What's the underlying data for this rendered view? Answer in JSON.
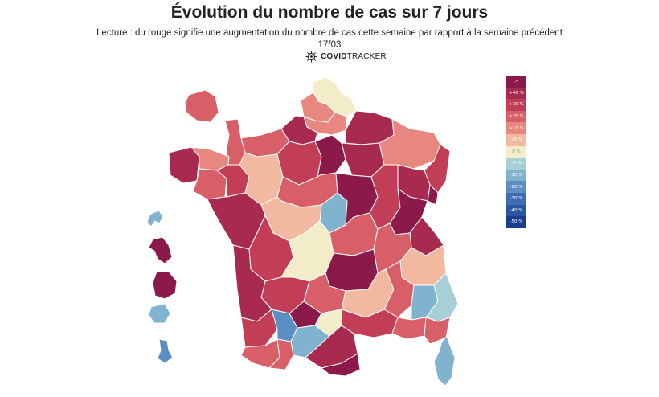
{
  "title": "Évolution du nombre de cas sur 7 jours",
  "subtitle": "Lecture : du rouge signifie une augmentation du nombre de cas cette semaine par rapport à la semaine précédent",
  "date": "17/03",
  "brand": {
    "bold": "COVID",
    "light": "TRACKER",
    "icon": "covidtracker-virus-icon"
  },
  "legend": [
    {
      "label": ">",
      "color": "#8b1a4a"
    },
    {
      "label": "+40 %",
      "color": "#a82a4f"
    },
    {
      "label": "+30 %",
      "color": "#c23e57"
    },
    {
      "label": "+20 %",
      "color": "#d85e68"
    },
    {
      "label": "+10 %",
      "color": "#e8877f"
    },
    {
      "label": "+5 %",
      "color": "#f2b8a0"
    },
    {
      "label": "0 %",
      "color": "#f3ecc8"
    },
    {
      "label": "-5 %",
      "color": "#a7cfd6"
    },
    {
      "label": "-10 %",
      "color": "#7fb3d0"
    },
    {
      "label": "-20 %",
      "color": "#5b8fc2"
    },
    {
      "label": "-30 %",
      "color": "#3d6fb0"
    },
    {
      "label": "-40 %",
      "color": "#2a55a0"
    },
    {
      "label": "-50 %",
      "color": "#1b3e8c"
    }
  ],
  "regions": [
    {
      "name": "nord",
      "color": "#f3ecc8"
    },
    {
      "name": "pas-de-calais",
      "color": "#e8877f"
    },
    {
      "name": "somme",
      "color": "#e8877f"
    },
    {
      "name": "seine-maritime",
      "color": "#a82a4f"
    },
    {
      "name": "calvados",
      "color": "#d85e68"
    },
    {
      "name": "manche",
      "color": "#d85e68"
    },
    {
      "name": "finistere",
      "color": "#a82a4f"
    },
    {
      "name": "cotes-d-armor",
      "color": "#e8877f"
    },
    {
      "name": "morbihan",
      "color": "#d85e68"
    },
    {
      "name": "ille-et-vilaine",
      "color": "#c23e57"
    },
    {
      "name": "mayenne-sarthe",
      "color": "#f2b8a0"
    },
    {
      "name": "orne-eure",
      "color": "#c23e57"
    },
    {
      "name": "paris",
      "color": "#8b1a4a"
    },
    {
      "name": "aisne-ardennes",
      "color": "#a82a4f"
    },
    {
      "name": "marne",
      "color": "#a82a4f"
    },
    {
      "name": "meuse-moselle",
      "color": "#e8877f"
    },
    {
      "name": "bas-rhin",
      "color": "#c23e57"
    },
    {
      "name": "haut-rhin",
      "color": "#8b1a4a"
    },
    {
      "name": "vosges",
      "color": "#a82a4f"
    },
    {
      "name": "loir-et-cher",
      "color": "#d85e68"
    },
    {
      "name": "cher",
      "color": "#7fb3d0"
    },
    {
      "name": "indre",
      "color": "#f2b8a0"
    },
    {
      "name": "nievre",
      "color": "#8b1a4a"
    },
    {
      "name": "cote-d-or",
      "color": "#c23e57"
    },
    {
      "name": "doubs-jura",
      "color": "#8b1a4a"
    },
    {
      "name": "haute-savoie",
      "color": "#a82a4f"
    },
    {
      "name": "vendee",
      "color": "#a82a4f"
    },
    {
      "name": "charente",
      "color": "#c23e57"
    },
    {
      "name": "creuse-correze",
      "color": "#f3ecc8"
    },
    {
      "name": "allier",
      "color": "#d85e68"
    },
    {
      "name": "puy-de-dome",
      "color": "#8b1a4a"
    },
    {
      "name": "loire-rhone",
      "color": "#d85e68"
    },
    {
      "name": "isere",
      "color": "#f2b8a0"
    },
    {
      "name": "dordogne",
      "color": "#c23e57"
    },
    {
      "name": "gironde",
      "color": "#a82a4f"
    },
    {
      "name": "lot",
      "color": "#d85e68"
    },
    {
      "name": "aveyron",
      "color": "#f2b8a0"
    },
    {
      "name": "drome",
      "color": "#d85e68"
    },
    {
      "name": "hautes-alpes",
      "color": "#7fb3d0"
    },
    {
      "name": "alpes-maritimes",
      "color": "#a7cfd6"
    },
    {
      "name": "landes",
      "color": "#c23e57"
    },
    {
      "name": "tarn-et-garonne",
      "color": "#8b1a4a"
    },
    {
      "name": "tarn",
      "color": "#f3ecc8"
    },
    {
      "name": "gers",
      "color": "#5b8fc2"
    },
    {
      "name": "haute-garonne",
      "color": "#7fb3d0"
    },
    {
      "name": "pyrenees-atlantiques",
      "color": "#d85e68"
    },
    {
      "name": "hautes-pyrenees",
      "color": "#d85e68"
    },
    {
      "name": "ariege-aude",
      "color": "#a82a4f"
    },
    {
      "name": "pyrenees-orientales",
      "color": "#8b1a4a"
    },
    {
      "name": "herault-gard",
      "color": "#c23e57"
    },
    {
      "name": "bouches-du-rhone",
      "color": "#d85e68"
    },
    {
      "name": "var",
      "color": "#d85e68"
    },
    {
      "name": "corse",
      "color": "#7fb3d0"
    },
    {
      "name": "guadeloupe",
      "color": "#7fb3d0"
    },
    {
      "name": "martinique",
      "color": "#8b1a4a"
    },
    {
      "name": "guyane",
      "color": "#8b1a4a"
    },
    {
      "name": "la-reunion",
      "color": "#7fb3d0"
    },
    {
      "name": "mayotte",
      "color": "#5b8fc2"
    },
    {
      "name": "ile-de-france-inset",
      "color": "#d85e68"
    }
  ]
}
